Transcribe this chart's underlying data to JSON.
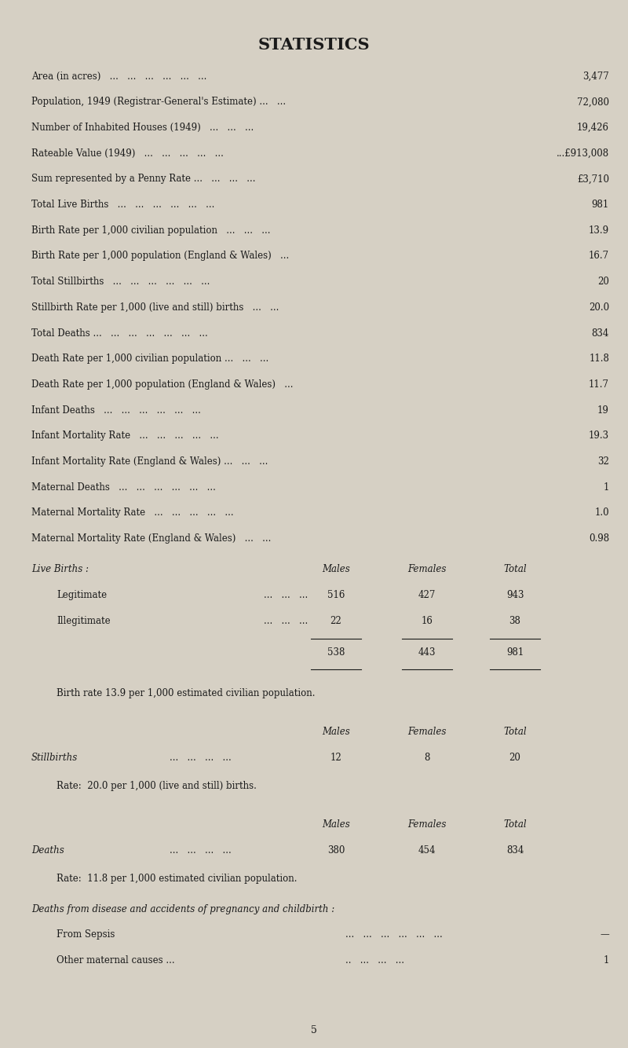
{
  "title": "STATISTICS",
  "background_color": "#d6d0c4",
  "text_color": "#1a1a1a",
  "page_number": "5",
  "stats_rows": [
    {
      "label": "Area (in acres)   ...   ...   ...   ...   ...   ...",
      "value": "3,477"
    },
    {
      "label": "Population, 1949 (Registrar-General's Estimate) ...   ...",
      "value": "72,080"
    },
    {
      "label": "Number of Inhabited Houses (1949)   ...   ...   ...",
      "value": "19,426"
    },
    {
      "label": "Rateable Value (1949)   ...   ...   ...   ...   ...",
      "value": "...£913,008"
    },
    {
      "label": "Sum represented by a Penny Rate ...   ...   ...   ...",
      "value": "£3,710"
    },
    {
      "label": "Total Live Births   ...   ...   ...   ...   ...   ...",
      "value": "981"
    },
    {
      "label": "Birth Rate per 1,000 civilian population   ...   ...   ...",
      "value": "13.9"
    },
    {
      "label": "Birth Rate per 1,000 population (England & Wales)   ...",
      "value": "16.7"
    },
    {
      "label": "Total Stillbirths   ...   ...   ...   ...   ...   ...",
      "value": "20"
    },
    {
      "label": "Stillbirth Rate per 1,000 (live and still) births   ...   ...",
      "value": "20.0"
    },
    {
      "label": "Total Deaths ...   ...   ...   ...   ...   ...   ...",
      "value": "834"
    },
    {
      "label": "Death Rate per 1,000 civilian population ...   ...   ...",
      "value": "11.8"
    },
    {
      "label": "Death Rate per 1,000 population (England & Wales)   ...",
      "value": "11.7"
    },
    {
      "label": "Infant Deaths   ...   ...   ...   ...   ...   ...",
      "value": "19"
    },
    {
      "label": "Infant Mortality Rate   ...   ...   ...   ...   ...",
      "value": "19.3"
    },
    {
      "label": "Infant Mortality Rate (England & Wales) ...   ...   ...",
      "value": "32"
    },
    {
      "label": "Maternal Deaths   ...   ...   ...   ...   ...   ...",
      "value": "1"
    },
    {
      "label": "Maternal Mortality Rate   ...   ...   ...   ...   ...",
      "value": "1.0"
    },
    {
      "label": "Maternal Mortality Rate (England & Wales)   ...   ...",
      "value": "0.98"
    }
  ],
  "live_births_header": "Live Births :",
  "live_births_cols": [
    "Males",
    "Females",
    "Total"
  ],
  "live_births_rows": [
    {
      "label": "Legitimate",
      "dots": "...   ...   ...",
      "males": "516",
      "females": "427",
      "total": "943"
    },
    {
      "label": "Illegitimate",
      "dots": "...   ...   ...",
      "males": "22",
      "females": "16",
      "total": "38"
    }
  ],
  "live_births_totals": {
    "males": "538",
    "females": "443",
    "total": "981"
  },
  "birth_rate_note": "Birth rate 13.9 per 1,000 estimated civilian population.",
  "stillbirths_label": "Stillbirths",
  "stillbirths_dots": "...   ...   ...   ...",
  "stillbirths_cols": [
    "Males",
    "Females",
    "Total"
  ],
  "stillbirths_data": {
    "males": "12",
    "females": "8",
    "total": "20"
  },
  "stillbirths_note": "Rate:  20.0 per 1,000 (live and still) births.",
  "deaths_label": "Deaths",
  "deaths_dots": "...   ...   ...   ...",
  "deaths_cols": [
    "Males",
    "Females",
    "Total"
  ],
  "deaths_data": {
    "males": "380",
    "females": "454",
    "total": "834"
  },
  "deaths_note": "Rate:  11.8 per 1,000 estimated civilian population.",
  "pregnancy_deaths_header": "Deaths from disease and accidents of pregnancy and childbirth :",
  "pregnancy_deaths_rows": [
    {
      "label": "From Sepsis",
      "dots": "...   ...   ...   ...   ...   ...",
      "value": "—"
    },
    {
      "label": "Other maternal causes ...",
      "dots": "..   ...   ...   ...",
      "value": "1"
    }
  ]
}
